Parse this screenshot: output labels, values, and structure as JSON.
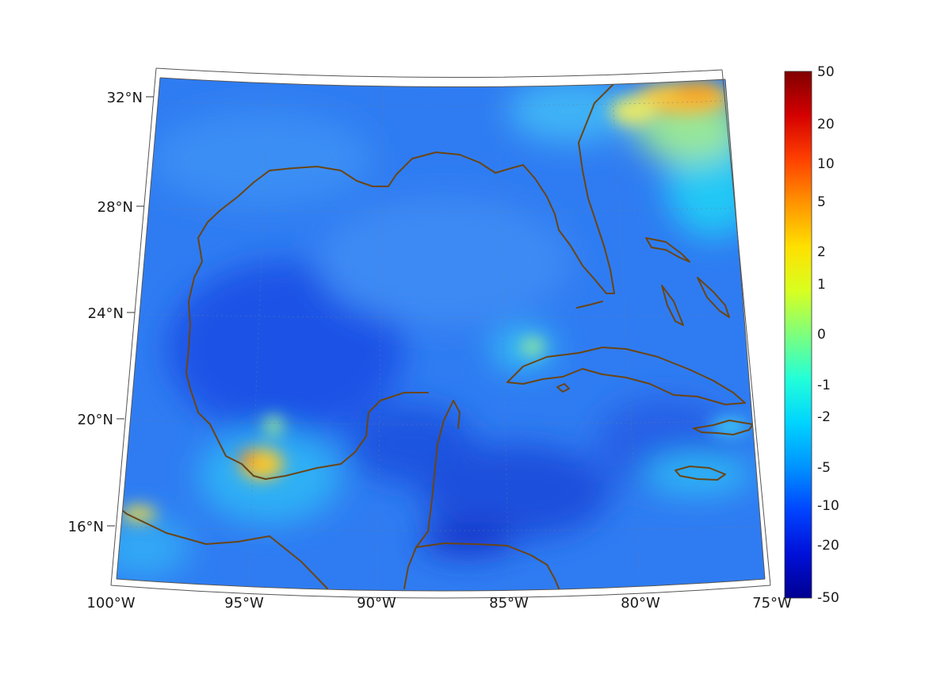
{
  "map": {
    "latitude_labels": [
      "32°N",
      "28°N",
      "24°N",
      "20°N",
      "16°N"
    ],
    "latitude_values": [
      32,
      28,
      24,
      20,
      16
    ],
    "longitude_labels": [
      "100°W",
      "95°W",
      "90°W",
      "85°W",
      "80°W",
      "75°W"
    ],
    "longitude_values": [
      -100,
      -95,
      -90,
      -85,
      -80,
      -75
    ],
    "extent": {
      "lon_min": -100,
      "lon_max": -75,
      "lat_min": 14,
      "lat_max": 33
    },
    "projection": "conic",
    "graticule": "dotted",
    "coastline_color": "#6b4513",
    "background_field_color": "#2b6cf0",
    "highlights": [
      {
        "region": "southeastern US coast",
        "level": "2 to 5"
      },
      {
        "region": "Bay of Campeche",
        "level": "1 to 5"
      },
      {
        "region": "Gulf of Tehuantepec",
        "level": "1 to 2"
      },
      {
        "region": "west of Cuba",
        "level": "-1"
      }
    ]
  },
  "colorbar": {
    "labels": [
      "50",
      "20",
      "10",
      "5",
      "2",
      "1",
      "0",
      "-1",
      "-2",
      "-5",
      "-10",
      "-20",
      "-50"
    ],
    "colors": [
      "#800000",
      "#d40000",
      "#ff4000",
      "#ff9400",
      "#ffe000",
      "#d8ff20",
      "#7dff7d",
      "#22ffd8",
      "#00d4ff",
      "#0094ff",
      "#0044ff",
      "#0010d8",
      "#000090"
    ]
  }
}
